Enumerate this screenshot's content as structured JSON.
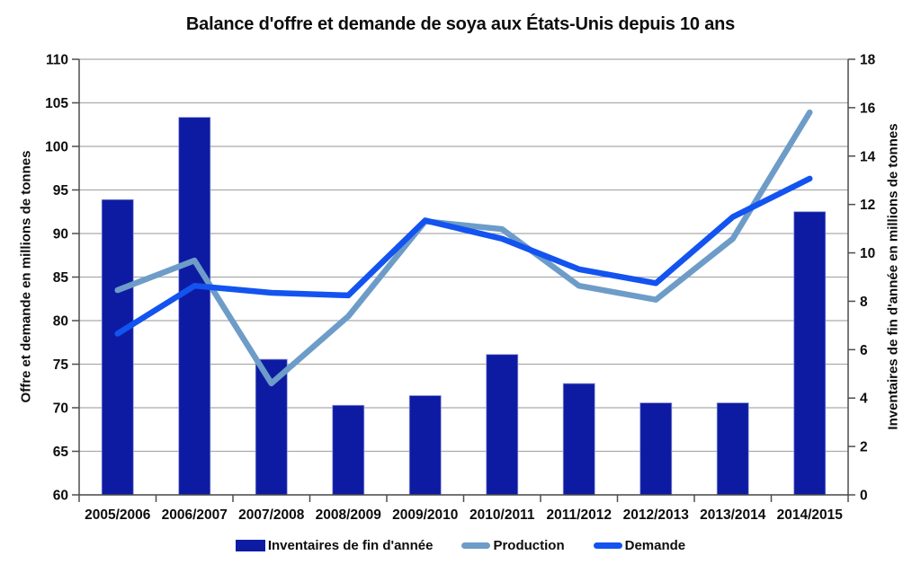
{
  "chart_data": {
    "type": "bar",
    "title": "Balance d'offre et demande de soya aux États-Unis depuis 10 ans",
    "categories": [
      "2005/2006",
      "2006/2007",
      "2007/2008",
      "2008/2009",
      "2009/2010",
      "2010/2011",
      "2011/2012",
      "2012/2013",
      "2013/2014",
      "2014/2015"
    ],
    "series": [
      {
        "id": "inventaires",
        "name": "Inventaires de fin d'année",
        "type": "bar",
        "axis": "right",
        "color": "#0d1ba3",
        "values": [
          12.2,
          15.6,
          5.6,
          3.7,
          4.1,
          5.8,
          4.6,
          3.8,
          3.8,
          11.7
        ]
      },
      {
        "id": "production",
        "name": "Production",
        "type": "line",
        "axis": "left",
        "color": "#6d9cc8",
        "values": [
          83.5,
          86.9,
          72.8,
          80.5,
          91.4,
          90.5,
          84.0,
          82.4,
          89.4,
          103.9
        ]
      },
      {
        "id": "demande",
        "name": "Demande",
        "type": "line",
        "axis": "left",
        "color": "#1353f0",
        "values": [
          78.5,
          84.0,
          83.2,
          82.9,
          91.5,
          89.4,
          85.9,
          84.3,
          91.9,
          96.3
        ]
      }
    ],
    "left_axis": {
      "label": "Offre et demande en millions de tonnes",
      "min": 60,
      "max": 110,
      "step": 5
    },
    "right_axis": {
      "label": "Inventaires de fin d'année en millions de tonnes",
      "min": 0,
      "max": 18,
      "step": 2
    },
    "grid": true,
    "legend_position": "bottom",
    "colors": {
      "grid": "#ababab",
      "axis": "#4d4d4d",
      "text": "#0d0d0d",
      "bar_edge": "#8790d6",
      "background": "#ffffff"
    }
  }
}
